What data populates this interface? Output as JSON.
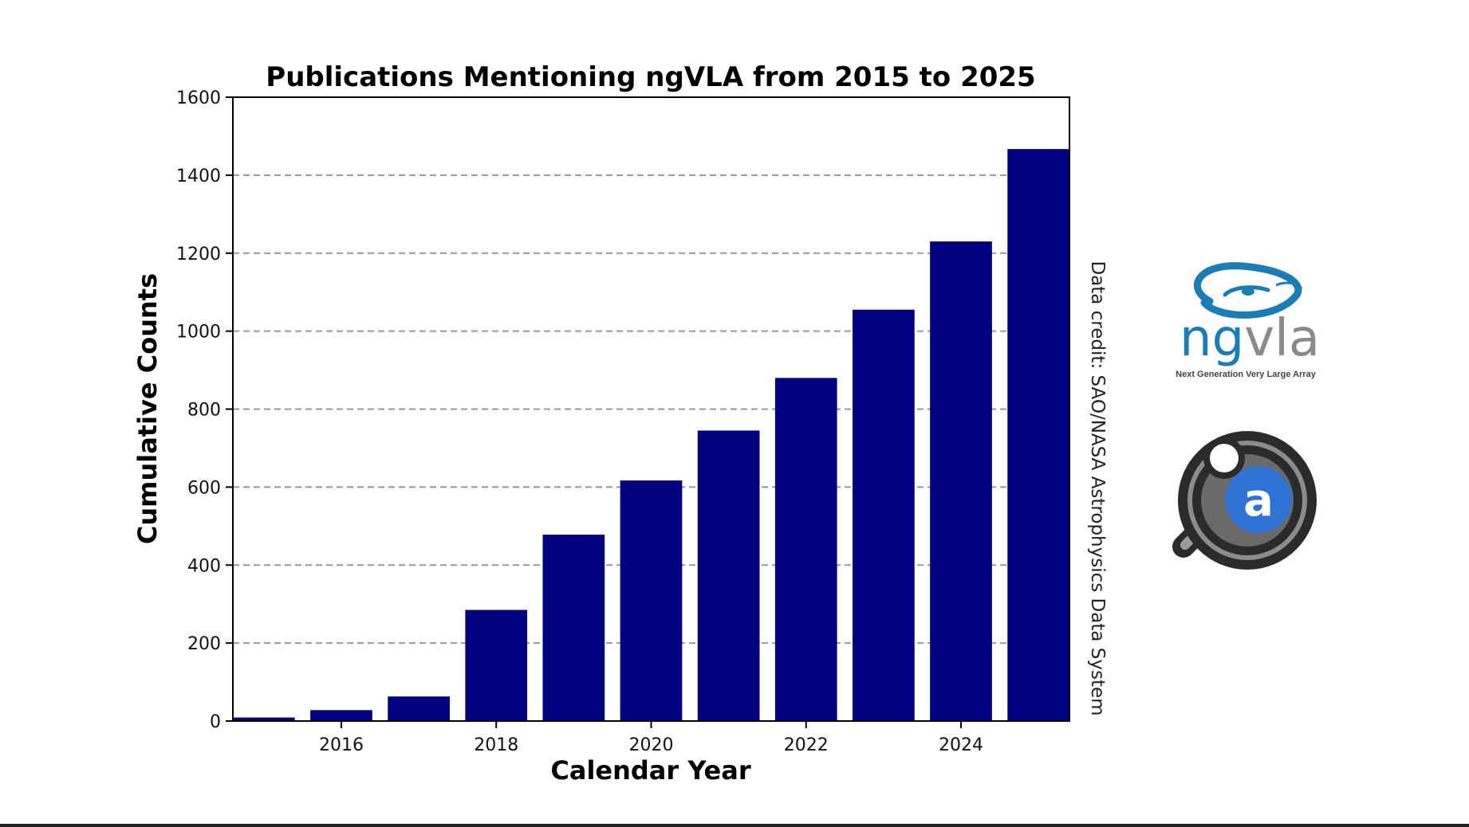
{
  "chart_data": {
    "type": "bar",
    "title": "Publications Mentioning ngVLA from 2015 to 2025",
    "xlabel": "Calendar Year",
    "ylabel": "Cumulative Counts",
    "x": [
      2015,
      2016,
      2017,
      2018,
      2019,
      2020,
      2021,
      2022,
      2023,
      2024,
      2025
    ],
    "values": [
      9,
      28,
      63,
      285,
      478,
      617,
      745,
      880,
      1055,
      1230,
      1467
    ],
    "xticks": [
      2016,
      2018,
      2020,
      2022,
      2024
    ],
    "yticks": [
      0,
      200,
      400,
      600,
      800,
      1000,
      1200,
      1400,
      1600
    ],
    "ylim": [
      0,
      1600
    ],
    "xlim": [
      2014.6,
      2025.4
    ],
    "bar_color": "#000080",
    "grid": "horizontal dashed",
    "grid_color": "#999999",
    "annotation": "Data credit: SAO/NASA Astrophysics Data System"
  },
  "logos": {
    "ngvla": {
      "word_ng": "ng",
      "word_vla": "vla",
      "subtitle": "Next Generation Very Large Array",
      "color_blue": "#1a7db5",
      "color_gray": "#8a8a8a"
    },
    "ads": {
      "letter": "a",
      "color_blue": "#2f72d6",
      "color_dark": "#2b2b2b"
    }
  }
}
